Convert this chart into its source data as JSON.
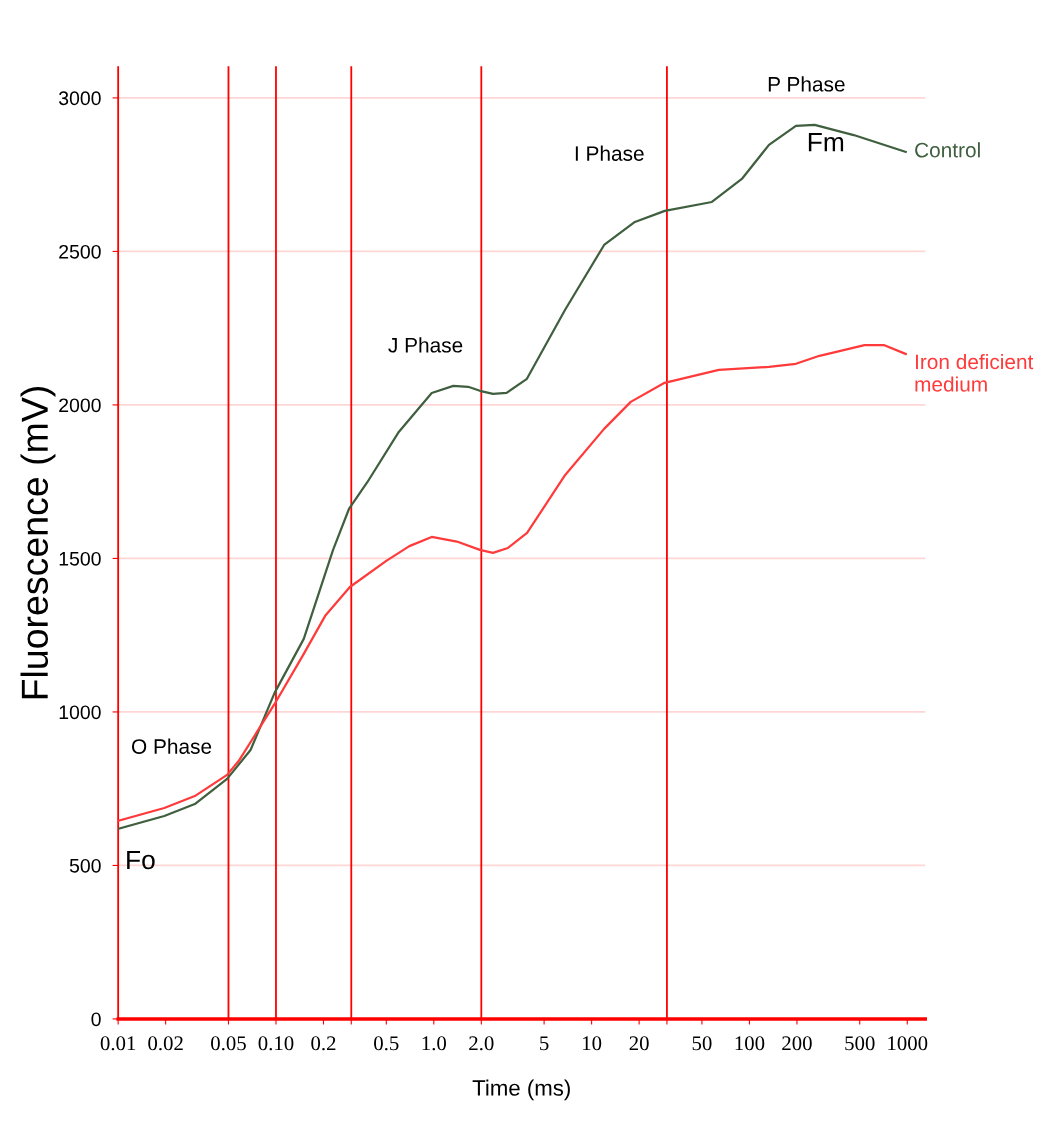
{
  "chart_data": {
    "type": "line",
    "xlabel": "Time (ms)",
    "ylabel": "Fluorescence (mV)",
    "log": "x",
    "xlim": [
      0.01,
      1300
    ],
    "ylim": [
      0,
      3100
    ],
    "xticks": [
      0.01,
      0.02,
      0.05,
      {
        "value": 0.1,
        "label": "0.10"
      },
      0.2,
      {
        "value": 0.3,
        "label": null
      },
      0.5,
      {
        "value": 1,
        "label": "1.0"
      },
      {
        "value": 2,
        "label": "2.0"
      },
      5,
      10,
      20,
      {
        "value": 30,
        "label": null
      },
      50,
      100,
      200,
      500,
      1000
    ],
    "yticks": [
      0,
      500,
      1000,
      1500,
      2000,
      2500,
      3000
    ],
    "grid": "y",
    "series": [
      {
        "name": "Control",
        "color": "#3f5f3f",
        "x": [
          0.01,
          0.0196,
          0.0306,
          0.049,
          0.069,
          0.098,
          0.15,
          0.23,
          0.29,
          0.38,
          0.6,
          0.97,
          1.33,
          1.65,
          1.96,
          2.37,
          2.89,
          3.89,
          6.78,
          12,
          18.8,
          29.1,
          57.8,
          89.5,
          133,
          197,
          259,
          458,
          978
        ],
        "values": [
          619,
          661,
          700,
          782,
          876,
          1062,
          1238,
          1528,
          1661,
          1749,
          1912,
          2039,
          2062,
          2059,
          2046,
          2036,
          2039,
          2085,
          2309,
          2521,
          2596,
          2632,
          2661,
          2736,
          2847,
          2909,
          2912,
          2879,
          2824
        ]
      },
      {
        "name": "Iron deficient medium",
        "color": "#ff3a3a",
        "x": [
          0.01,
          0.0196,
          0.0306,
          0.049,
          0.058,
          0.098,
          0.15,
          0.205,
          0.294,
          0.5,
          0.7,
          0.97,
          1.4,
          1.96,
          2.37,
          2.95,
          3.9,
          6.8,
          12,
          17.7,
          29,
          64,
          133,
          197,
          278,
          536,
          710,
          978
        ],
        "values": [
          645,
          687,
          726,
          795,
          840,
          1026,
          1189,
          1313,
          1407,
          1492,
          1540,
          1570,
          1555,
          1528,
          1518,
          1534,
          1583,
          1772,
          1922,
          2010,
          2072,
          2114,
          2124,
          2134,
          2160,
          2195,
          2195,
          2166
        ]
      }
    ],
    "ref_lines": [
      {
        "axis": "x",
        "value": 0.05,
        "color": "#ff0000"
      },
      {
        "axis": "x",
        "value": 0.1,
        "color": "#ff0000"
      },
      {
        "axis": "x",
        "value": 0.3,
        "color": "#ff0000"
      },
      {
        "axis": "x",
        "value": 2,
        "color": "#ff0000"
      },
      {
        "axis": "x",
        "value": 30,
        "color": "#ff0000"
      }
    ],
    "annotations": [
      {
        "text": "O Phase",
        "x": 0.049,
        "y": 782
      },
      {
        "text": "Fo",
        "x": 0.01,
        "y": 619
      },
      {
        "text": "J Phase",
        "x": 1.33,
        "y": 2062
      },
      {
        "text": "I Phase",
        "x": 29.1,
        "y": 2632
      },
      {
        "text": "P Phase",
        "x": 259,
        "y": 2912
      },
      {
        "text": "Fm",
        "x": 259,
        "y": 2912
      }
    ]
  }
}
